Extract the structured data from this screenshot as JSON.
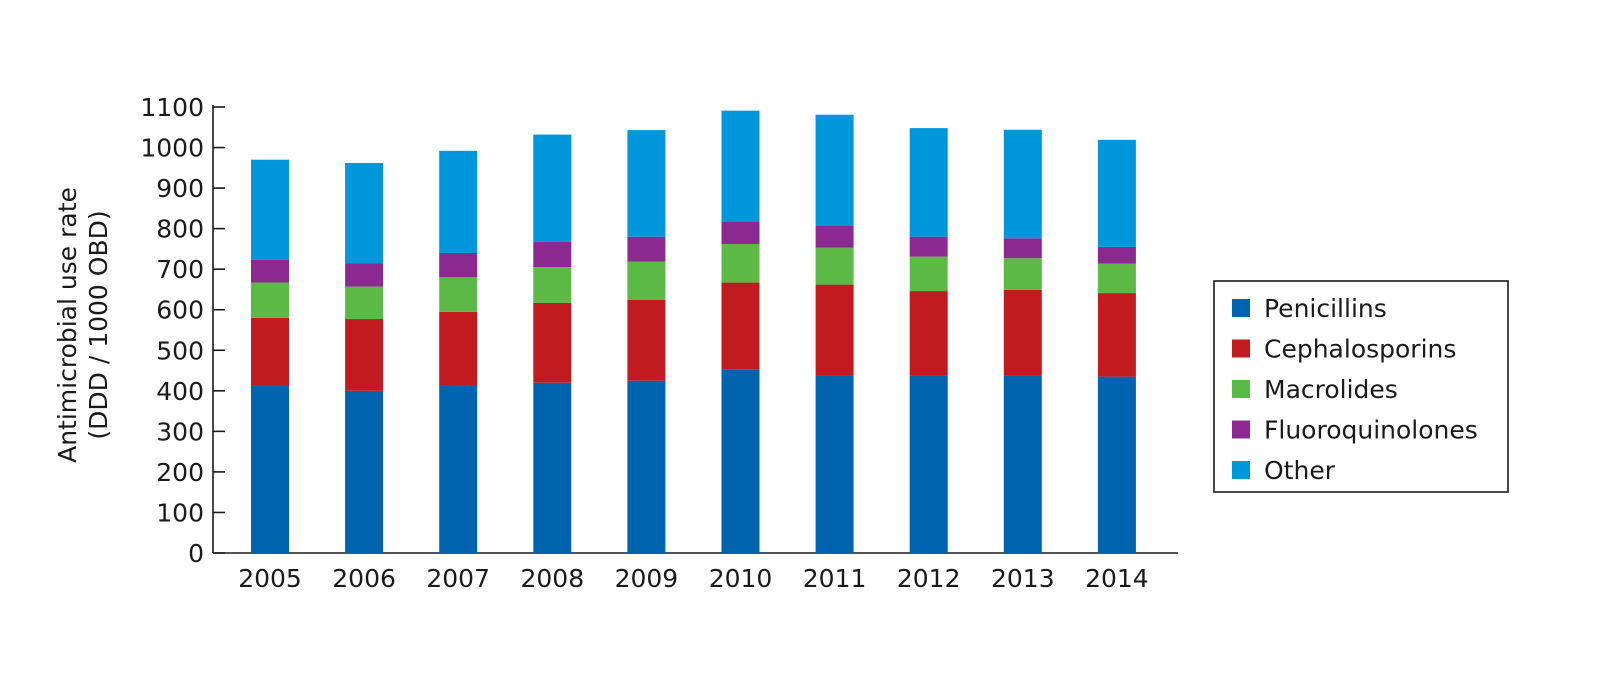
{
  "chart_data": {
    "type": "bar",
    "stacked": true,
    "categories": [
      "2005",
      "2006",
      "2007",
      "2008",
      "2009",
      "2010",
      "2011",
      "2012",
      "2013",
      "2014"
    ],
    "series": [
      {
        "name": "Penicillins",
        "color": "#0063ad",
        "values": [
          412,
          400,
          412,
          420,
          425,
          452,
          438,
          438,
          438,
          435
        ]
      },
      {
        "name": "Cephalosporins",
        "color": "#c11b20",
        "values": [
          168,
          177,
          183,
          197,
          199,
          215,
          224,
          208,
          211,
          206
        ]
      },
      {
        "name": "Macrolides",
        "color": "#5cb946",
        "values": [
          87,
          80,
          85,
          88,
          95,
          95,
          91,
          85,
          78,
          73
        ]
      },
      {
        "name": "Fluoroquinolones",
        "color": "#8b2991",
        "values": [
          56,
          57,
          60,
          62,
          61,
          56,
          55,
          49,
          49,
          41
        ]
      },
      {
        "name": "Other",
        "color": "#0096db",
        "values": [
          247,
          248,
          252,
          265,
          263,
          273,
          273,
          268,
          268,
          264
        ]
      }
    ],
    "ylabel": [
      "Antimicrobial use rate",
      "(DDD / 1000 OBD)"
    ],
    "xlabel": "",
    "ylim": [
      0,
      1100
    ],
    "yticks": [
      0,
      100,
      200,
      300,
      400,
      500,
      600,
      700,
      800,
      900,
      1000,
      1100
    ],
    "grid": false,
    "legend_position": "right"
  }
}
